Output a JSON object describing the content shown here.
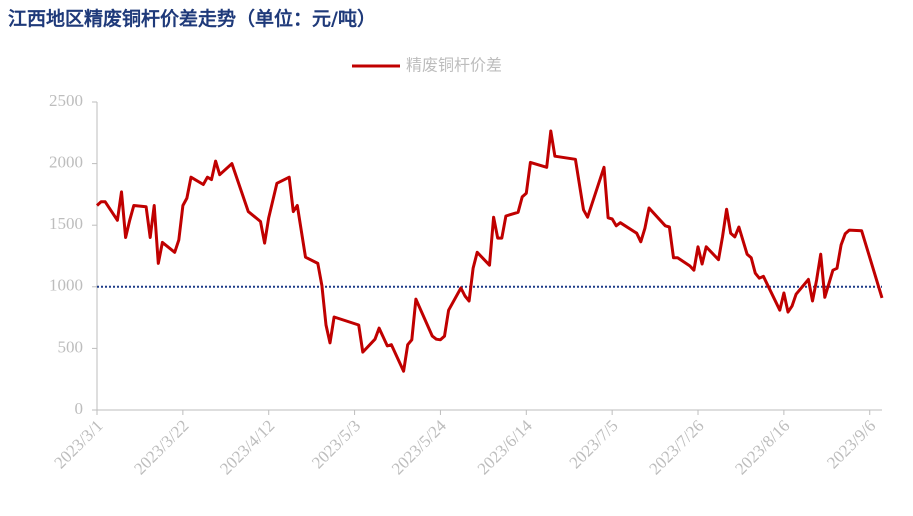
{
  "chart_data": {
    "type": "line",
    "title": "江西地区精废铜杆价差走势（单位：元/吨）",
    "x": [
      "2023/3/1",
      "2023/3/2",
      "2023/3/3",
      "2023/3/6",
      "2023/3/7",
      "2023/3/8",
      "2023/3/9",
      "2023/3/10",
      "2023/3/13",
      "2023/3/14",
      "2023/3/15",
      "2023/3/16",
      "2023/3/17",
      "2023/3/20",
      "2023/3/21",
      "2023/3/22",
      "2023/3/23",
      "2023/3/24",
      "2023/3/27",
      "2023/3/28",
      "2023/3/29",
      "2023/3/30",
      "2023/3/31",
      "2023/4/3",
      "2023/4/7",
      "2023/4/10",
      "2023/4/11",
      "2023/4/12",
      "2023/4/14",
      "2023/4/17",
      "2023/4/18",
      "2023/4/19",
      "2023/4/21",
      "2023/4/24",
      "2023/4/25",
      "2023/4/26",
      "2023/4/27",
      "2023/4/28",
      "2023/5/4",
      "2023/5/5",
      "2023/5/8",
      "2023/5/9",
      "2023/5/11",
      "2023/5/12",
      "2023/5/15",
      "2023/5/16",
      "2023/5/17",
      "2023/5/18",
      "2023/5/22",
      "2023/5/23",
      "2023/5/24",
      "2023/5/25",
      "2023/5/26",
      "2023/5/29",
      "2023/5/30",
      "2023/5/31",
      "2023/6/1",
      "2023/6/2",
      "2023/6/5",
      "2023/6/6",
      "2023/6/7",
      "2023/6/8",
      "2023/6/9",
      "2023/6/12",
      "2023/6/13",
      "2023/6/14",
      "2023/6/15",
      "2023/6/19",
      "2023/6/20",
      "2023/6/21",
      "2023/6/26",
      "2023/6/28",
      "2023/6/29",
      "2023/7/3",
      "2023/7/4",
      "2023/7/5",
      "2023/7/6",
      "2023/7/7",
      "2023/7/11",
      "2023/7/12",
      "2023/7/13",
      "2023/7/14",
      "2023/7/18",
      "2023/7/19",
      "2023/7/20",
      "2023/7/21",
      "2023/7/24",
      "2023/7/25",
      "2023/7/26",
      "2023/7/27",
      "2023/7/28",
      "2023/7/31",
      "2023/8/1",
      "2023/8/2",
      "2023/8/3",
      "2023/8/4",
      "2023/8/5",
      "2023/8/7",
      "2023/8/8",
      "2023/8/9",
      "2023/8/10",
      "2023/8/11",
      "2023/8/15",
      "2023/8/16",
      "2023/8/17",
      "2023/8/18",
      "2023/8/19",
      "2023/8/22",
      "2023/8/23",
      "2023/8/24",
      "2023/8/25",
      "2023/8/26",
      "2023/8/28",
      "2023/8/29",
      "2023/8/30",
      "2023/8/31",
      "2023/9/1",
      "2023/9/4",
      "2023/9/7",
      "2023/9/9"
    ],
    "series": [
      {
        "name": "精废铜杆价差",
        "color": "#c00000",
        "values": [
          1660,
          1690,
          1690,
          1540,
          1770,
          1400,
          1540,
          1660,
          1650,
          1400,
          1660,
          1190,
          1360,
          1280,
          1380,
          1660,
          1720,
          1890,
          1830,
          1890,
          1870,
          2020,
          1910,
          2000,
          1610,
          1530,
          1355,
          1560,
          1840,
          1890,
          1610,
          1660,
          1240,
          1190,
          1010,
          690,
          545,
          755,
          690,
          470,
          575,
          665,
          520,
          530,
          315,
          530,
          570,
          900,
          600,
          575,
          570,
          600,
          810,
          990,
          925,
          885,
          1150,
          1280,
          1175,
          1565,
          1395,
          1395,
          1575,
          1605,
          1730,
          1760,
          2010,
          1970,
          2265,
          2060,
          2035,
          1625,
          1565,
          1970,
          1560,
          1550,
          1495,
          1520,
          1435,
          1365,
          1475,
          1640,
          1495,
          1485,
          1235,
          1235,
          1170,
          1135,
          1325,
          1185,
          1325,
          1220,
          1405,
          1630,
          1435,
          1405,
          1485,
          1265,
          1235,
          1110,
          1070,
          1085,
          810,
          950,
          795,
          845,
          940,
          1060,
          885,
          1055,
          1265,
          915,
          1135,
          1150,
          1340,
          1430,
          1460,
          1455,
          1130,
          910
        ]
      }
    ],
    "reference_line": 1000,
    "xlim": [
      "2023/3/1",
      "2023/9/9"
    ],
    "xticks": [
      "2023/3/1",
      "2023/3/22",
      "2023/4/12",
      "2023/5/3",
      "2023/5/24",
      "2023/6/14",
      "2023/7/5",
      "2023/7/26",
      "2023/8/16",
      "2023/9/6"
    ],
    "ylim": [
      0,
      2500
    ],
    "yticks": [
      0,
      500,
      1000,
      1500,
      2000,
      2500
    ],
    "legend": "top"
  }
}
